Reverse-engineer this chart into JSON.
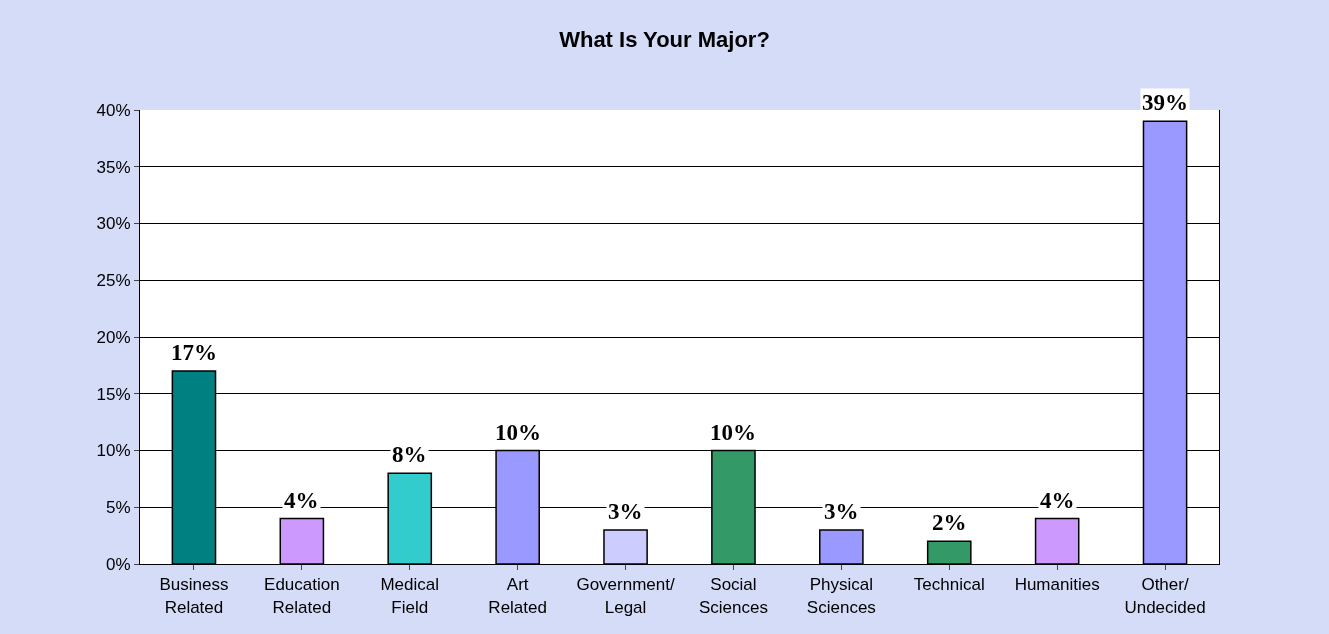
{
  "chart_data": {
    "type": "bar",
    "title": "What Is Your Major?",
    "categories": [
      "Business\nRelated",
      "Education\nRelated",
      "Medical\nField",
      "Art\nRelated",
      "Government/\nLegal",
      "Social\nSciences",
      "Physical\nSciences",
      "Technical",
      "Humanities",
      "Other/\nUndecided"
    ],
    "values": [
      17,
      4,
      8,
      10,
      3,
      10,
      3,
      2,
      4,
      39
    ],
    "colors": [
      "#008080",
      "#cc99ff",
      "#33cccc",
      "#9999ff",
      "#ccccff",
      "#339966",
      "#9999ff",
      "#339966",
      "#cc99ff",
      "#9999ff"
    ],
    "value_labels": [
      "17%",
      "4%",
      "8%",
      "10%",
      "3%",
      "10%",
      "3%",
      "2%",
      "4%",
      "39%"
    ],
    "ylim": [
      0,
      40
    ],
    "yticks": [
      {
        "value": 0,
        "label": "0%"
      },
      {
        "value": 5,
        "label": "5%"
      },
      {
        "value": 10,
        "label": "10%"
      },
      {
        "value": 15,
        "label": "15%"
      },
      {
        "value": 20,
        "label": "20%"
      },
      {
        "value": 25,
        "label": "25%"
      },
      {
        "value": 30,
        "label": "30%"
      },
      {
        "value": 35,
        "label": "35%"
      },
      {
        "value": 40,
        "label": "40%"
      }
    ],
    "grid": "y",
    "legend": false
  }
}
